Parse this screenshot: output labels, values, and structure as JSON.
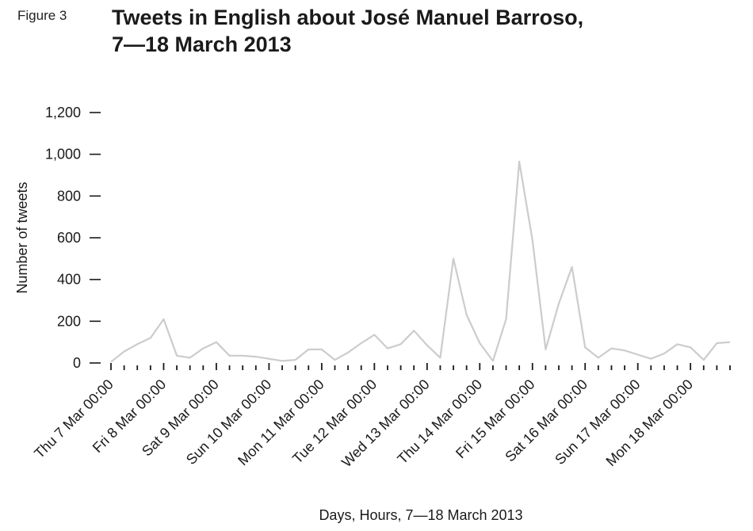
{
  "figure_label": "Figure 3",
  "chart_data": {
    "type": "line",
    "title_line1": "Tweets in English about José Manuel Barroso,",
    "title_line2": "7—18 March 2013",
    "xlabel": "Days, Hours, 7—18 March 2013",
    "ylabel": "Number of tweets",
    "ylim": [
      0,
      1200
    ],
    "yticks": [
      0,
      200,
      400,
      600,
      800,
      1000,
      1200
    ],
    "ytick_labels": [
      "0",
      "200",
      "400",
      "600",
      "800",
      "1,000",
      "1,200"
    ],
    "x_count": 48,
    "x_label_indices": [
      0,
      4,
      8,
      12,
      16,
      20,
      24,
      28,
      32,
      36,
      40,
      44
    ],
    "x_labels": [
      "Thu 7 Mar 00:00",
      "Fri 8 Mar 00:00",
      "Sat 9 Mar 00:00",
      "Sun 10 Mar 00:00",
      "Mon 11 Mar 00:00",
      "Tue 12 Mar 00:00",
      "Wed 13 Mar 00:00",
      "Thu 14 Mar 00:00",
      "Fri 15 Mar 00:00",
      "Sat 16 Mar 00:00",
      "Sun 17 Mar 00:00",
      "Mon 18 Mar 00:00"
    ],
    "line_color": "#cccccc",
    "values": [
      5,
      55,
      90,
      120,
      210,
      35,
      25,
      70,
      100,
      35,
      35,
      30,
      20,
      10,
      15,
      65,
      65,
      15,
      50,
      95,
      135,
      70,
      90,
      155,
      85,
      25,
      500,
      230,
      95,
      10,
      210,
      965,
      590,
      65,
      285,
      460,
      75,
      25,
      70,
      60,
      40,
      20,
      45,
      90,
      75,
      15,
      95,
      100
    ]
  }
}
